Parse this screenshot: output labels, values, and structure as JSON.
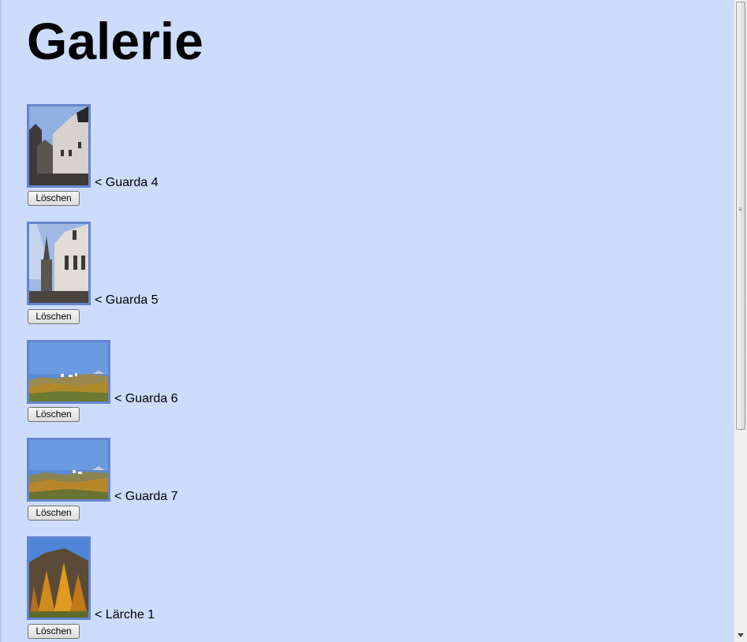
{
  "page": {
    "title": "Galerie"
  },
  "gallery": {
    "items": [
      {
        "caption": "< Guarda 4",
        "delete_label": "Löschen",
        "image": "village-street-photo"
      },
      {
        "caption": "< Guarda 5",
        "delete_label": "Löschen",
        "image": "church-tower-photo"
      },
      {
        "caption": "< Guarda 6",
        "delete_label": "Löschen",
        "image": "village-landscape-photo"
      },
      {
        "caption": "< Guarda 7",
        "delete_label": "Löschen",
        "image": "village-landscape-photo"
      },
      {
        "caption": "< Lärche 1",
        "delete_label": "Löschen",
        "image": "larch-trees-photo"
      }
    ]
  },
  "colors": {
    "background": "#cddcfd",
    "thumb_border": "#6685cf"
  }
}
